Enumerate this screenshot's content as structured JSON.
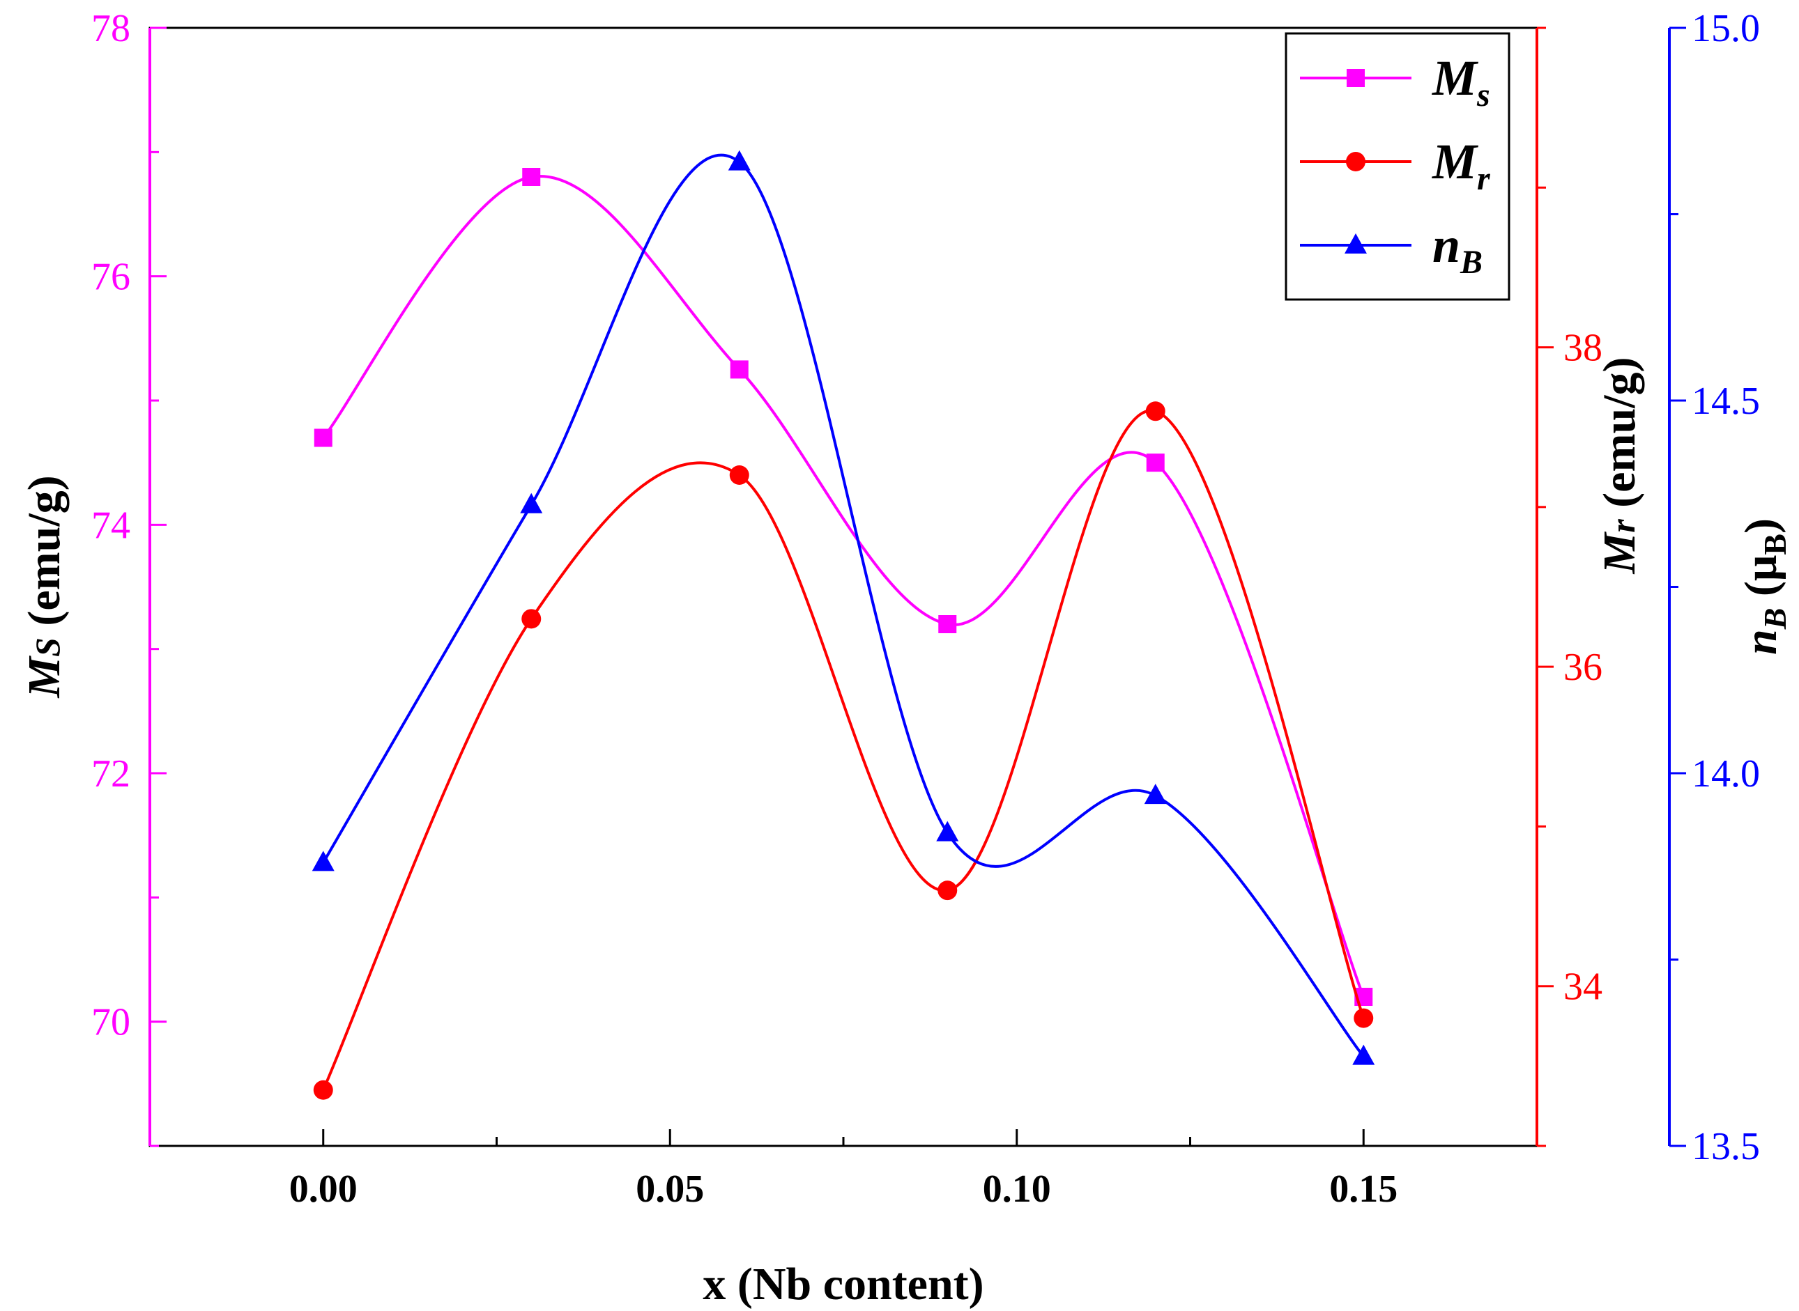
{
  "chart_data": {
    "type": "line",
    "xlabel": "x (Nb content)",
    "x": [
      0.0,
      0.03,
      0.06,
      0.09,
      0.12,
      0.15
    ],
    "xlim": [
      -0.025,
      0.175
    ],
    "xticks": [
      "0.00",
      "0.05",
      "0.10",
      "0.15"
    ],
    "y_axes": {
      "ms": {
        "label_main": "M",
        "label_sub": "S",
        "label_rest": " (emu/g)",
        "ylim": [
          69.0,
          78.0
        ],
        "ticks": [
          "70",
          "72",
          "74",
          "76",
          "78"
        ],
        "color": "#ff00ff"
      },
      "mr": {
        "label_main": "M",
        "label_sub": "r",
        "label_rest": " (emu/g)",
        "ylim": [
          33.0,
          40.0
        ],
        "ticks": [
          "34",
          "36",
          "38"
        ],
        "color": "#ff0000"
      },
      "nb": {
        "label_main": "n",
        "label_sub": "B",
        "label_rest": " (μ",
        "label_sub2": "B",
        "label_end": ")",
        "ylim": [
          13.5,
          15.0
        ],
        "ticks": [
          "13.5",
          "14.0",
          "14.5",
          "15.0"
        ],
        "color": "#0000ff"
      }
    },
    "series": [
      {
        "name": "Ms",
        "legend_main": "M",
        "legend_sub": "s",
        "axis": "ms",
        "marker": "square",
        "color": "#ff00ff",
        "values": [
          74.7,
          76.8,
          75.25,
          73.2,
          74.5,
          70.2
        ]
      },
      {
        "name": "Mr",
        "legend_main": "M",
        "legend_sub": "r",
        "axis": "mr",
        "marker": "circle",
        "color": "#ff0000",
        "values": [
          33.35,
          36.3,
          37.2,
          34.6,
          37.6,
          33.8
        ]
      },
      {
        "name": "nB",
        "legend_main": "n",
        "legend_sub": "B",
        "axis": "nb",
        "marker": "triangle",
        "color": "#0000ff",
        "values": [
          13.88,
          14.36,
          14.82,
          13.92,
          13.97,
          13.62
        ]
      }
    ],
    "legend_position": "top-right"
  }
}
